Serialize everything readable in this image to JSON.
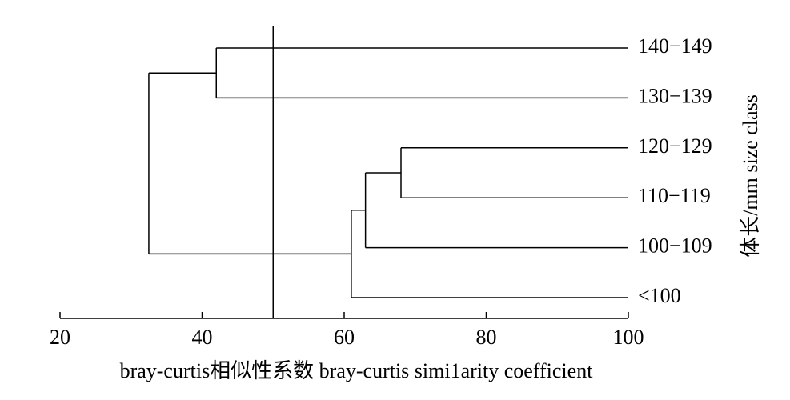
{
  "chart_data": {
    "type": "dendrogram",
    "xlabel": "bray-curtis相似性系数 bray-curtis simi1arity coefficient",
    "ylabel": "体长/mm size class",
    "xlim": [
      20,
      100
    ],
    "xticks": [
      20,
      40,
      60,
      80,
      100
    ],
    "cut": 50,
    "color": "#000000",
    "tree": {
      "height": 32.5,
      "children": [
        {
          "height": 42,
          "children": [
            {
              "label": "140−149"
            },
            {
              "label": "130−139"
            }
          ]
        },
        {
          "height": 61,
          "children": [
            {
              "height": 63,
              "children": [
                {
                  "height": 68,
                  "children": [
                    {
                      "label": "120−129"
                    },
                    {
                      "label": "110−119"
                    }
                  ]
                },
                {
                  "label": "100−109"
                }
              ]
            },
            {
              "label": "<100"
            }
          ]
        }
      ]
    }
  }
}
